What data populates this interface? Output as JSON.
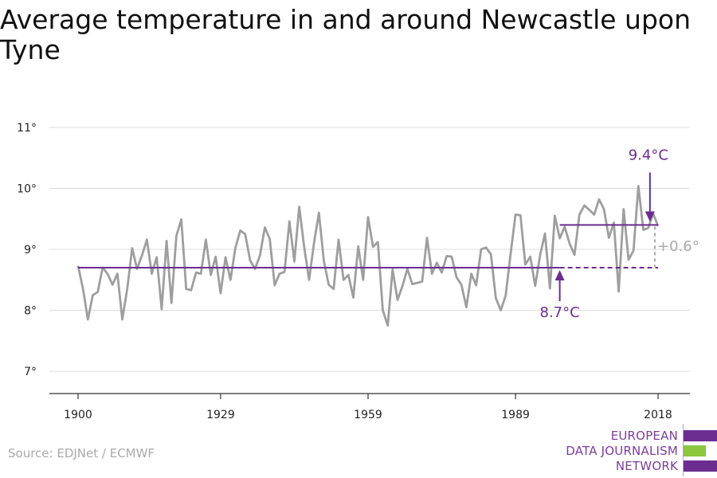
{
  "title": "Average temperature in and around Newcastle upon Tyne",
  "source": "Source: EDJNet / ECMWF",
  "logo": {
    "lines": [
      "EUROPEAN",
      "DATA JOURNALISM",
      "NETWORK"
    ],
    "bar_colors": [
      "#6b2d90",
      "#8dc63f",
      "#6b2d90"
    ],
    "text_color": "#7b3f98"
  },
  "colors": {
    "series": "#9e9e9e",
    "baseline": "#6b2d90",
    "annotation": "#6b2d90",
    "difference": "#aaaaaa",
    "grid": "#dddddd",
    "axis": "#333333"
  },
  "chart_data": {
    "type": "line",
    "xlim": [
      1900,
      2018
    ],
    "ylim": [
      7,
      11
    ],
    "y_ticks": [
      {
        "value": 7,
        "label": "7°"
      },
      {
        "value": 8,
        "label": "8°"
      },
      {
        "value": 9,
        "label": "9°"
      },
      {
        "value": 10,
        "label": "10°"
      },
      {
        "value": 11,
        "label": "11°"
      }
    ],
    "x_ticks": [
      {
        "value": 1900,
        "label": "1900"
      },
      {
        "value": 1929,
        "label": "1929"
      },
      {
        "value": 1959,
        "label": "1959"
      },
      {
        "value": 1989,
        "label": "1989"
      },
      {
        "value": 2018,
        "label": "2018"
      }
    ],
    "series": [
      {
        "x": [
          1900,
          1901,
          1902,
          1903,
          1904,
          1905,
          1906,
          1907,
          1908,
          1909,
          1910,
          1911,
          1912,
          1913,
          1914,
          1915,
          1916,
          1917,
          1918,
          1919,
          1920,
          1921,
          1922,
          1923,
          1924,
          1925,
          1926,
          1927,
          1928,
          1929,
          1930,
          1931,
          1932,
          1933,
          1934,
          1935,
          1936,
          1937,
          1938,
          1939,
          1940,
          1941,
          1942,
          1943,
          1944,
          1945,
          1946,
          1947,
          1948,
          1949,
          1950,
          1951,
          1952,
          1953,
          1954,
          1955,
          1956,
          1957,
          1958,
          1959,
          1960,
          1961,
          1962,
          1963,
          1964,
          1965,
          1966,
          1967,
          1968,
          1969,
          1970,
          1971,
          1972,
          1973,
          1974,
          1975,
          1976,
          1977,
          1978,
          1979,
          1980,
          1981,
          1982,
          1983,
          1984,
          1985,
          1986,
          1987,
          1988,
          1989,
          1990,
          1991,
          1992,
          1993,
          1994,
          1995,
          1996,
          1997,
          1998,
          1999,
          2000,
          2001,
          2002,
          2003,
          2004,
          2005,
          2006,
          2007,
          2008,
          2009,
          2010,
          2011,
          2012,
          2013,
          2014,
          2015,
          2016,
          2017,
          2018
        ],
        "values": [
          8.73,
          8.35,
          7.85,
          8.25,
          8.3,
          8.7,
          8.6,
          8.42,
          8.6,
          7.85,
          8.35,
          9.02,
          8.68,
          8.9,
          9.16,
          8.6,
          8.87,
          8.02,
          9.14,
          8.12,
          9.22,
          9.49,
          8.35,
          8.33,
          8.62,
          8.6,
          9.16,
          8.58,
          8.88,
          8.28,
          8.87,
          8.5,
          9.02,
          9.31,
          9.25,
          8.82,
          8.68,
          8.9,
          9.36,
          9.17,
          8.41,
          8.6,
          8.63,
          9.46,
          8.8,
          9.7,
          9.04,
          8.5,
          9.1,
          9.6,
          8.81,
          8.42,
          8.35,
          9.16,
          8.5,
          8.58,
          8.21,
          9.05,
          8.5,
          9.53,
          9.04,
          9.12,
          8.0,
          7.75,
          8.67,
          8.17,
          8.4,
          8.68,
          8.43,
          8.45,
          8.47,
          9.19,
          8.6,
          8.78,
          8.62,
          8.89,
          8.88,
          8.54,
          8.42,
          8.05,
          8.6,
          8.41,
          9.0,
          9.03,
          8.92,
          8.2,
          8.0,
          8.24,
          8.92,
          9.57,
          9.56,
          8.75,
          8.88,
          8.4,
          8.9,
          9.26,
          8.36,
          9.55,
          9.18,
          9.37,
          9.1,
          8.91,
          9.57,
          9.72,
          9.65,
          9.57,
          9.82,
          9.66,
          9.19,
          9.44,
          8.31,
          9.66,
          8.83,
          8.98,
          10.04,
          9.32,
          9.35,
          9.59,
          9.38
        ]
      }
    ],
    "baseline": {
      "value": 8.7,
      "label": "8.7°C",
      "from": 1900,
      "to": 2018,
      "dashed_from": 1998,
      "arrow_x": 1998
    },
    "recent_mean": {
      "value": 9.4,
      "label": "9.4°C",
      "from": 1998,
      "to": 2018,
      "arrow_x": 2017
    },
    "difference": {
      "label": "+0.6°",
      "at": 2018
    },
    "grid": true
  }
}
